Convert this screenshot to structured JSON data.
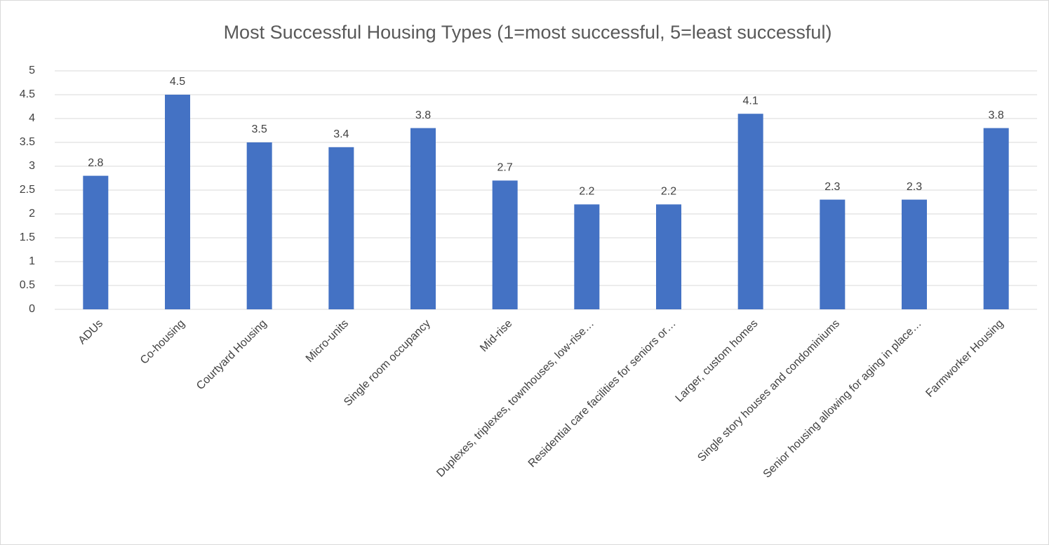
{
  "chart_data": {
    "type": "bar",
    "title": "Most Successful Housing Types (1=most successful, 5=least successful)",
    "categories": [
      "ADUs",
      "Co-housing",
      "Courtyard Housing",
      "Micro-units",
      "Single room occupancy",
      "Mid-rise",
      "Duplexes, triplexes, townhouses, low-rise…",
      "Residential care facilities for seniors or…",
      "Larger, custom homes",
      "Single story houses and condominiums",
      "Senior housing allowing for aging in place…",
      "Farmworker Housing"
    ],
    "values": [
      2.8,
      4.5,
      3.5,
      3.4,
      3.8,
      2.7,
      2.2,
      2.2,
      4.1,
      2.3,
      2.3,
      3.8
    ],
    "color": "#4472c4",
    "ylim": [
      0,
      5
    ],
    "yticks": [
      0,
      0.5,
      1,
      1.5,
      2,
      2.5,
      3,
      3.5,
      4,
      4.5,
      5
    ],
    "grid": true,
    "data_labels": true
  }
}
